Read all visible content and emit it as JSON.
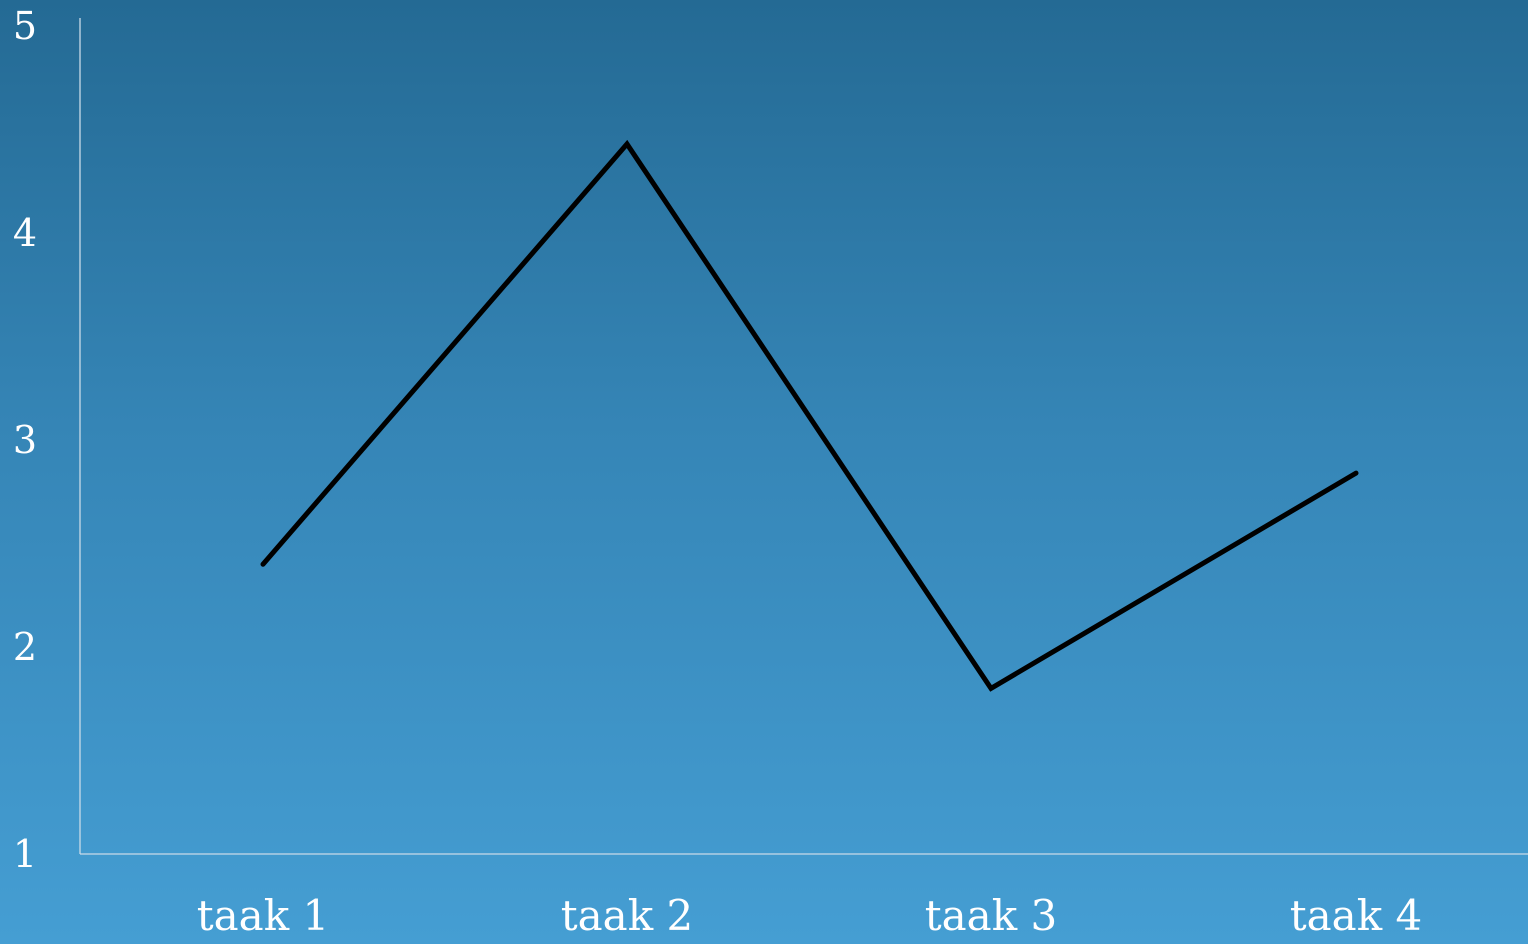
{
  "chart_data": {
    "type": "line",
    "categories": [
      "taak 1",
      "taak 2",
      "taak 3",
      "taak 4"
    ],
    "y_ticks": [
      "1",
      "2",
      "3",
      "4",
      "5"
    ],
    "ylim": [
      1,
      5
    ],
    "grid": false,
    "legend": "none",
    "series": [
      {
        "values": [
          2.4,
          4.43,
          1.8,
          2.84
        ],
        "color": "#000000"
      }
    ],
    "colors": {
      "background_top": "#246a94",
      "background_bottom": "#459ed3",
      "axis": "#c9dbe8",
      "tick_text": "#ffffff",
      "line": "#000000"
    }
  }
}
